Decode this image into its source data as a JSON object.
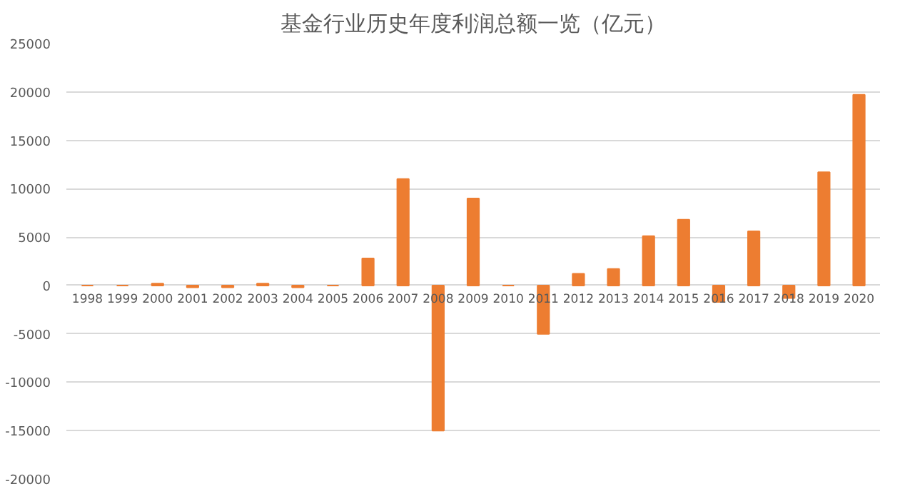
{
  "chart_data": {
    "type": "bar",
    "title": "基金行业历史年度利润总额一览（亿元）",
    "categories": [
      "1998",
      "1999",
      "2000",
      "2001",
      "2002",
      "2003",
      "2004",
      "2005",
      "2006",
      "2007",
      "2008",
      "2009",
      "2010",
      "2011",
      "2012",
      "2013",
      "2014",
      "2015",
      "2016",
      "2017",
      "2018",
      "2019",
      "2020"
    ],
    "values": [
      0,
      0,
      200,
      -200,
      -200,
      200,
      -200,
      0,
      2800,
      11000,
      -15000,
      9000,
      0,
      -5000,
      1200,
      1700,
      5100,
      6800,
      -1700,
      5600,
      -1300,
      11700,
      19700
    ],
    "color": "#ed7d31",
    "ylim": [
      -20000,
      25000
    ],
    "yticks": [
      -20000,
      -15000,
      -10000,
      -5000,
      0,
      5000,
      10000,
      15000,
      20000,
      25000
    ],
    "grid": "y"
  }
}
